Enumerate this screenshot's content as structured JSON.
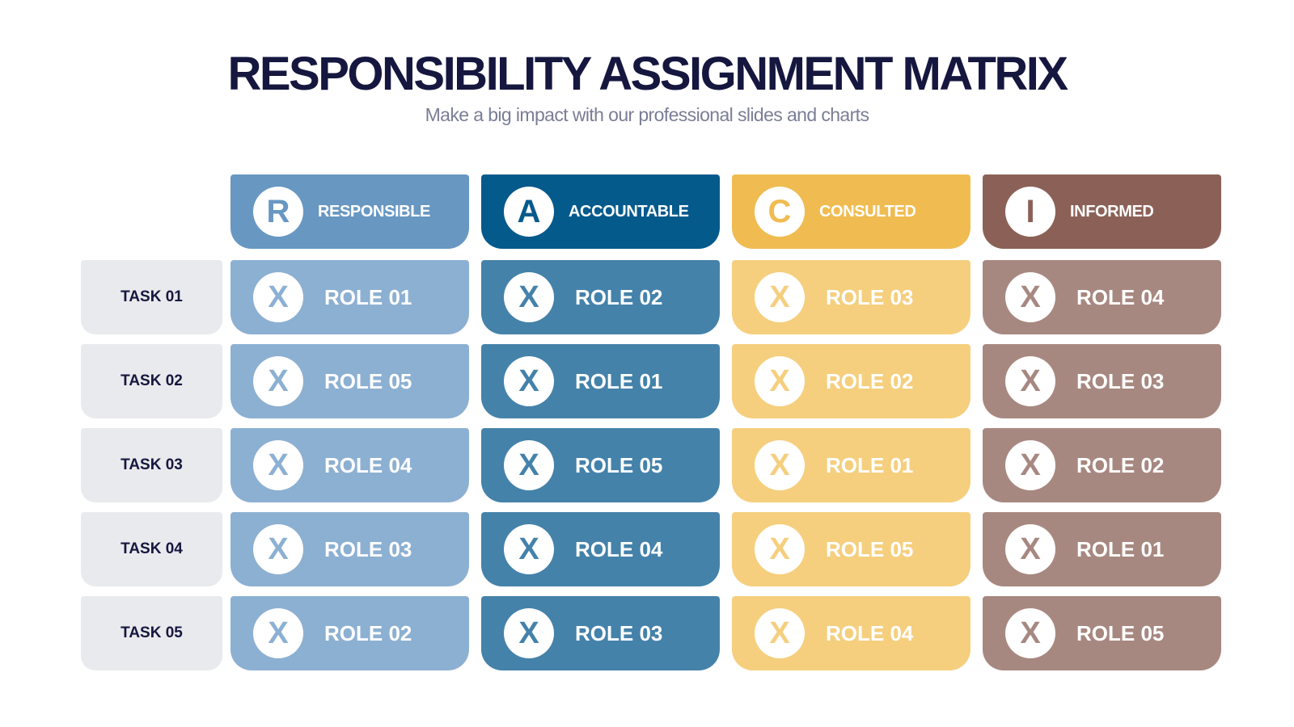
{
  "title": "RESPONSIBILITY ASSIGNMENT MATRIX",
  "subtitle": "Make a big impact with our professional slides and charts",
  "columns": [
    {
      "letter": "R",
      "label": "RESPONSIBLE",
      "header_color": "#6897c2",
      "cell_color": "#8cb0d2"
    },
    {
      "letter": "A",
      "label": "ACCOUNTABLE",
      "header_color": "#055a8c",
      "cell_color": "#4482aa"
    },
    {
      "letter": "C",
      "label": "CONSULTED",
      "header_color": "#f0bc51",
      "cell_color": "#f5cf7e"
    },
    {
      "letter": "I",
      "label": "INFORMED",
      "header_color": "#8b6157",
      "cell_color": "#a78880"
    }
  ],
  "mark": "X",
  "tasks": [
    {
      "label": "TASK 01",
      "roles": [
        "ROLE 01",
        "ROLE 02",
        "ROLE 03",
        "ROLE 04"
      ]
    },
    {
      "label": "TASK 02",
      "roles": [
        "ROLE 05",
        "ROLE 01",
        "ROLE 02",
        "ROLE 03"
      ]
    },
    {
      "label": "TASK 03",
      "roles": [
        "ROLE 04",
        "ROLE 05",
        "ROLE 01",
        "ROLE 02"
      ]
    },
    {
      "label": "TASK 04",
      "roles": [
        "ROLE 03",
        "ROLE 04",
        "ROLE 05",
        "ROLE 01"
      ]
    },
    {
      "label": "TASK 05",
      "roles": [
        "ROLE 02",
        "ROLE 03",
        "ROLE 04",
        "ROLE 05"
      ]
    }
  ]
}
